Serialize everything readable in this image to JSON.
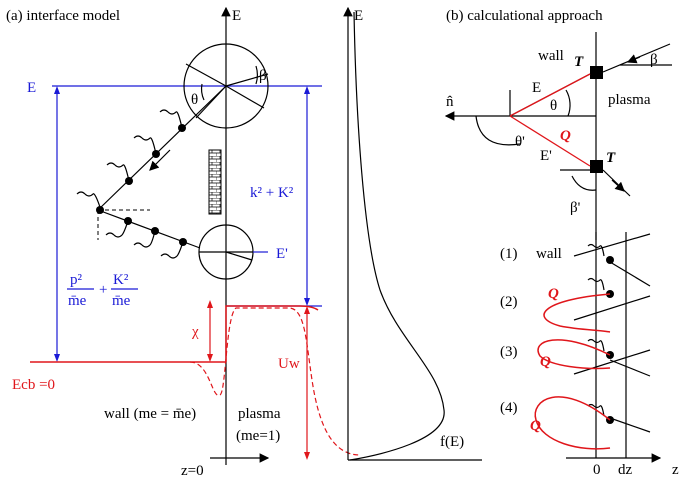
{
  "panel_a": {
    "title": "(a) interface model",
    "axis_E": "E",
    "E_level": "E",
    "beta": "β",
    "theta": "θ",
    "k2K2": "k² + K²",
    "E_prime": "E'",
    "p2_term": "p²",
    "me_bar_1": "m̄e",
    "plus": "+",
    "K2_term": "K²",
    "me_bar_2": "m̄e",
    "chi": "χ",
    "Uw": "Uw",
    "Ecb": "Ecb =0",
    "wall_label": "wall (me = m̄e)",
    "plasma_label": "plasma",
    "plasma_mass": "(me=1)",
    "z0": "z=0"
  },
  "panel_dist": {
    "axis_E": "E",
    "fE": "f(E)"
  },
  "panel_b": {
    "title": "(b) calculational approach",
    "wall": "wall",
    "plasma": "plasma",
    "T_top": "T",
    "T_bot": "T",
    "beta": "β",
    "beta_prime": "β'",
    "n_hat": "n̂",
    "E": "E",
    "theta": "θ",
    "theta_prime": "θ'",
    "E_prime": "E'",
    "Q": "Q",
    "row1": "(1)",
    "row1_wall": "wall",
    "row2": "(2)",
    "row3": "(3)",
    "row4": "(4)",
    "Q2": "Q",
    "Q3": "Q",
    "Q4": "Q",
    "z_0": "0",
    "dz": "dz",
    "z": "z"
  },
  "colors": {
    "blue": "#1a1ad6",
    "red": "#e0161b",
    "black": "#000000"
  }
}
